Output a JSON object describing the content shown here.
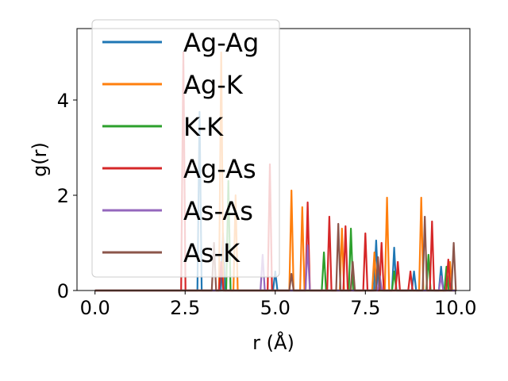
{
  "chart_data": {
    "type": "line",
    "title": "",
    "xlabel": "r (Å)",
    "ylabel": "g(r)",
    "xlim": [
      -0.5,
      10.4
    ],
    "ylim": [
      0,
      5.5
    ],
    "x_ticks": [
      0.0,
      2.5,
      5.0,
      7.5,
      10.0
    ],
    "x_tick_labels": [
      "0.0",
      "2.5",
      "5.0",
      "7.5",
      "10.0"
    ],
    "y_ticks": [
      0,
      2,
      4
    ],
    "y_tick_labels": [
      "0",
      "2",
      "4"
    ],
    "grid": false,
    "legend_position": "upper-left",
    "peak_half_width": 0.06,
    "series": [
      {
        "name": "Ag-Ag",
        "color": "#1f77b4",
        "peaks": [
          [
            2.9,
            3.75
          ],
          [
            3.55,
            1.2
          ],
          [
            5.0,
            0.4
          ],
          [
            7.8,
            1.05
          ],
          [
            8.3,
            0.9
          ],
          [
            8.85,
            0.4
          ],
          [
            9.6,
            0.5
          ]
        ]
      },
      {
        "name": "Ag-K",
        "color": "#ff7f0e",
        "peaks": [
          [
            3.5,
            5.0
          ],
          [
            3.9,
            2.0
          ],
          [
            5.45,
            2.1
          ],
          [
            5.75,
            1.75
          ],
          [
            6.85,
            1.3
          ],
          [
            7.75,
            0.8
          ],
          [
            8.1,
            1.95
          ],
          [
            9.05,
            1.95
          ],
          [
            9.85,
            0.6
          ]
        ]
      },
      {
        "name": "K-K",
        "color": "#2ca02c",
        "peaks": [
          [
            3.7,
            2.3
          ],
          [
            6.35,
            0.8
          ],
          [
            7.1,
            1.3
          ],
          [
            8.3,
            0.4
          ],
          [
            9.25,
            0.75
          ],
          [
            9.75,
            0.5
          ]
        ]
      },
      {
        "name": "Ag-As",
        "color": "#d62728",
        "peaks": [
          [
            2.45,
            5.0
          ],
          [
            3.5,
            0.6
          ],
          [
            4.85,
            2.65
          ],
          [
            5.9,
            1.85
          ],
          [
            6.5,
            1.55
          ],
          [
            6.95,
            1.35
          ],
          [
            7.5,
            1.2
          ],
          [
            7.95,
            1.0
          ],
          [
            8.4,
            0.6
          ],
          [
            8.75,
            0.4
          ],
          [
            9.35,
            1.45
          ],
          [
            9.8,
            0.65
          ]
        ]
      },
      {
        "name": "As-As",
        "color": "#9467bd",
        "peaks": [
          [
            4.65,
            0.75
          ],
          [
            5.9,
            0.95
          ],
          [
            7.9,
            0.3
          ],
          [
            9.6,
            0.3
          ]
        ]
      },
      {
        "name": "As-K",
        "color": "#8c564b",
        "peaks": [
          [
            3.3,
            1.0
          ],
          [
            5.45,
            0.35
          ],
          [
            6.75,
            1.4
          ],
          [
            7.15,
            0.6
          ],
          [
            7.85,
            0.7
          ],
          [
            9.15,
            1.55
          ],
          [
            9.95,
            1.0
          ]
        ]
      }
    ]
  }
}
